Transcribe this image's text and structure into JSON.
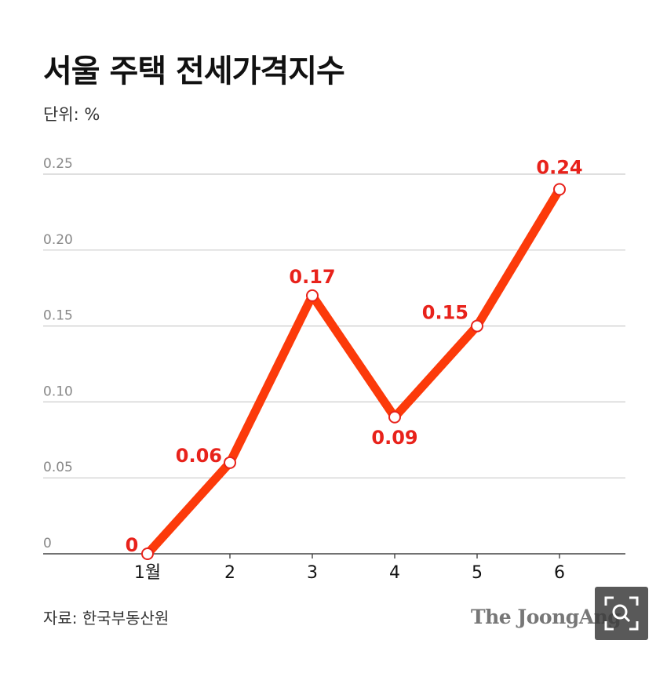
{
  "header": {
    "title": "서울 주택 전세가격지수",
    "unit": "단위: %"
  },
  "footer": {
    "source": "자료: 한국부동산원",
    "brand": "The JoongAng"
  },
  "colors": {
    "line": "#fc3a0a",
    "label": "#e8221b",
    "grid": "#cccccc",
    "axis": "#444444"
  },
  "icons": {
    "zoom": "zoom-search-icon"
  },
  "chart_data": {
    "type": "line",
    "title": "서울 주택 전세가격지수",
    "ylabel": "단위: %",
    "categories": [
      "1월",
      "2",
      "3",
      "4",
      "5",
      "6"
    ],
    "series": [
      {
        "values": [
          0,
          0.06,
          0.17,
          0.09,
          0.15,
          0.24
        ]
      }
    ],
    "data_labels": [
      "0",
      "0.06",
      "0.17",
      "0.09",
      "0.15",
      "0.24"
    ],
    "yticks": [
      "0",
      "0.05",
      "0.10",
      "0.15",
      "0.20",
      "0.25"
    ],
    "ylim": [
      0,
      0.25
    ],
    "grid": true,
    "legend": "none"
  }
}
